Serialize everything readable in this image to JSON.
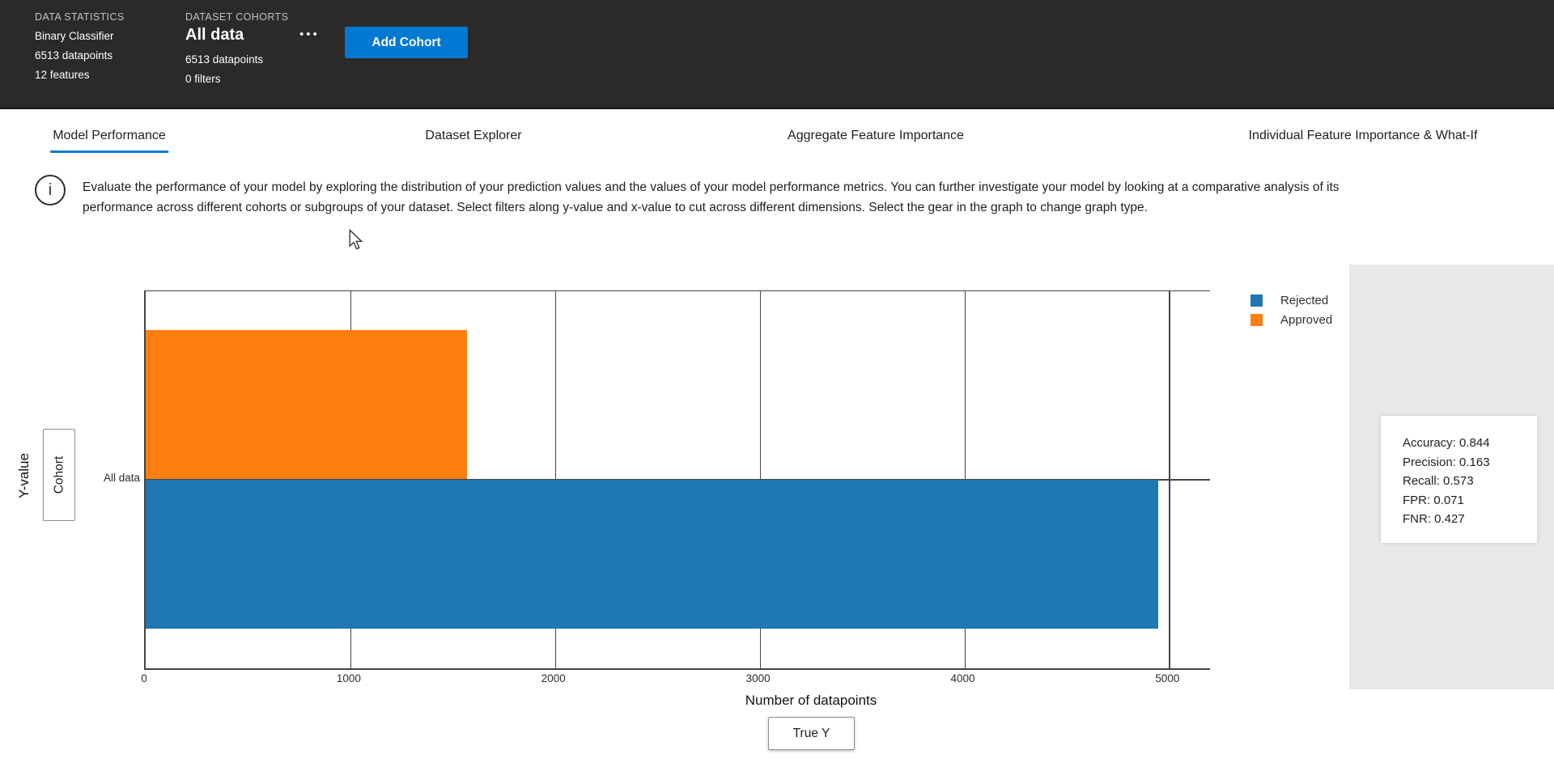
{
  "header": {
    "data_statistics": {
      "label": "DATA STATISTICS",
      "model_type": "Binary Classifier",
      "datapoints": "6513 datapoints",
      "features": "12 features"
    },
    "dataset_cohorts": {
      "label": "DATASET COHORTS",
      "cohort_name": "All data",
      "datapoints": "6513 datapoints",
      "filters": "0 filters"
    },
    "more_options_glyph": "•••",
    "add_cohort_label": "Add Cohort"
  },
  "tabs": [
    {
      "label": "Model Performance",
      "active": true
    },
    {
      "label": "Dataset Explorer",
      "active": false
    },
    {
      "label": "Aggregate Feature Importance",
      "active": false
    },
    {
      "label": "Individual Feature Importance & What-If",
      "active": false
    }
  ],
  "info": {
    "icon_glyph": "i",
    "text": "Evaluate the performance of your model by exploring the distribution of your prediction values and the values of your model performance metrics. You can further investigate your model by looking at a comparative analysis of its performance across different cohorts or subgroups of your dataset. Select filters along y-value and x-value to cut across different dimensions. Select the gear in the graph to change graph type."
  },
  "chart_data": {
    "type": "bar",
    "orientation": "horizontal",
    "categories": [
      "All data"
    ],
    "series": [
      {
        "name": "Approved",
        "color": "#ff7f0e",
        "values": [
          1568
        ]
      },
      {
        "name": "Rejected",
        "color": "#1f77b4",
        "values": [
          4945
        ]
      }
    ],
    "xlabel": "Number of datapoints",
    "ylabel": "Y-value",
    "xlim": [
      0,
      5200
    ],
    "xticks": [
      0,
      1000,
      2000,
      3000,
      4000,
      5000
    ],
    "grid": true,
    "legend_position": "top-right"
  },
  "legend": {
    "items": [
      {
        "label": "Rejected",
        "color": "#1f77b4"
      },
      {
        "label": "Approved",
        "color": "#ff7f0e"
      }
    ]
  },
  "axis_controls": {
    "y_axis_title": "Y-value",
    "y_axis_button_label": "Cohort",
    "x_axis_title": "Number of datapoints",
    "x_axis_button_label": "True Y"
  },
  "metrics_panel": {
    "lines": [
      "Accuracy: 0.844",
      "Precision: 0.163",
      "Recall: 0.573",
      "FPR: 0.071",
      "FNR: 0.427"
    ]
  },
  "colors": {
    "header_bg": "#2b2a28",
    "accent_blue": "#0078d4",
    "bar_rejected": "#1f77b4",
    "bar_approved": "#ff7f0e",
    "panel_gray": "#e9e8e7",
    "axis_line": "#454440"
  }
}
